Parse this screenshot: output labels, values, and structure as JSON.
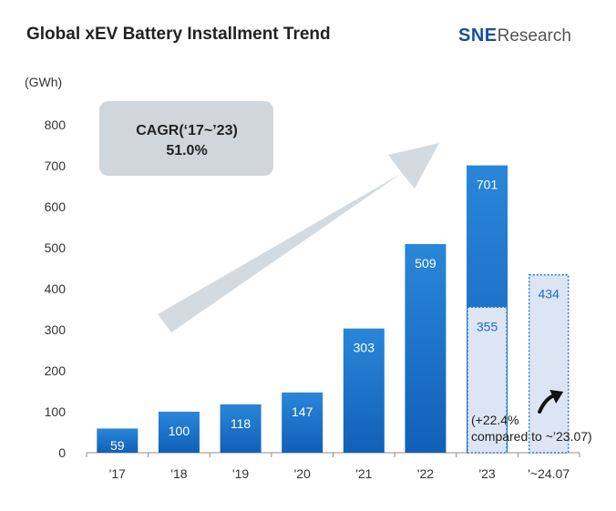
{
  "chart_data": {
    "type": "bar",
    "title": "Global xEV Battery Installment Trend",
    "unit": "(GWh)",
    "brand": {
      "prefix": "SNE",
      "suffix": "Research"
    },
    "categories": [
      "'17",
      "'18",
      "'19",
      "'20",
      "'21",
      "'22",
      "'23",
      "'~24.07"
    ],
    "values": [
      59,
      100,
      118,
      147,
      303,
      509,
      701,
      434
    ],
    "partial_value_2023": 355,
    "ylim": [
      0,
      800
    ],
    "yticks": [
      0,
      100,
      200,
      300,
      400,
      500,
      600,
      700,
      800
    ],
    "grid": false,
    "annotations": {
      "cagr_line1": "CAGR(‘17~’23)",
      "cagr_line2": "51.0%",
      "comparison_line1": "(+22.4%",
      "comparison_line2": "compared to ~’23.07)"
    },
    "colors": {
      "bar_top": "#2a86d8",
      "bar_bottom": "#1160b8",
      "partial_fill": "#dde5f5",
      "partial_border": "#2a7fd0",
      "partial_label": "#1a6fc8",
      "cagr_box": "#cfd7dc",
      "arrow": "#cdd5da"
    }
  }
}
